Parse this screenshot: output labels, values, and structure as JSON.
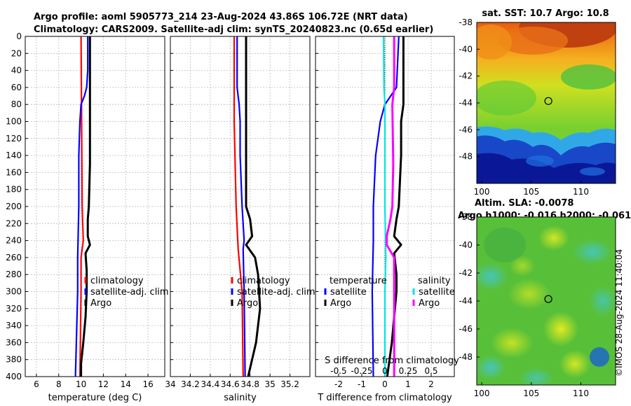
{
  "header": {
    "line1": "Argo profile: aoml 5905773_214 23-Aug-2024 43.86S 106.72E (NRT data)",
    "line2": "Climatology: CARS2009. Satellite-adj clim: synTS_20240823.nc (0.65d earlier)"
  },
  "stamp": "©IMOS 28-Aug-2024 11:40:04",
  "colors": {
    "climatology": "#ff0000",
    "satellite": "#0000ff",
    "argo": "#000000",
    "sal_satellite": "#00e5e5",
    "sal_argo": "#ff00ff"
  },
  "chart_data": [
    {
      "type": "line",
      "id": "temperature",
      "xlabel": "temperature (deg C)",
      "xlim": [
        5,
        17.5
      ],
      "xticks": [
        6,
        8,
        10,
        12,
        14,
        16
      ],
      "ylim": [
        0,
        400
      ],
      "yticks": [
        0,
        20,
        40,
        60,
        80,
        100,
        120,
        140,
        160,
        180,
        200,
        220,
        240,
        260,
        280,
        300,
        320,
        340,
        360,
        380,
        400
      ],
      "grid": true,
      "legend": [
        "climatology",
        "satellite-adj. clim",
        "Argo"
      ],
      "legend_position": "lower-center",
      "series": [
        {
          "name": "climatology",
          "color": "#ff0000",
          "depth": [
            0,
            100,
            200,
            240,
            250,
            260,
            300,
            350,
            400
          ],
          "values": [
            10.0,
            10.05,
            10.1,
            10.2,
            10.1,
            10.0,
            10.0,
            9.95,
            9.9
          ]
        },
        {
          "name": "satellite-adj. clim",
          "color": "#0000ff",
          "depth": [
            0,
            40,
            60,
            70,
            80,
            100,
            140,
            200,
            260,
            300,
            350,
            400
          ],
          "values": [
            10.6,
            10.6,
            10.5,
            10.3,
            10.0,
            9.9,
            9.8,
            9.8,
            9.7,
            9.7,
            9.6,
            9.5
          ]
        },
        {
          "name": "Argo",
          "color": "#000000",
          "depth": [
            0,
            100,
            150,
            200,
            215,
            235,
            245,
            255,
            275,
            300,
            330,
            360,
            385,
            400
          ],
          "values": [
            10.8,
            10.8,
            10.8,
            10.7,
            10.6,
            10.6,
            10.8,
            10.4,
            10.5,
            10.5,
            10.4,
            10.2,
            10.0,
            10.0
          ]
        }
      ]
    },
    {
      "type": "line",
      "id": "salinity",
      "xlabel": "salinity",
      "xlim": [
        34.0,
        35.4
      ],
      "xticks": [
        34,
        34.2,
        34.4,
        34.6,
        34.8,
        35,
        35.2
      ],
      "ylim": [
        0,
        400
      ],
      "grid": true,
      "legend": [
        "climatology",
        "satellite-adj. clim",
        "Argo"
      ],
      "legend_position": "lower-center",
      "series": [
        {
          "name": "climatology",
          "color": "#ff0000",
          "depth": [
            0,
            100,
            200,
            250,
            300,
            400
          ],
          "values": [
            34.64,
            34.64,
            34.66,
            34.68,
            34.72,
            34.73
          ]
        },
        {
          "name": "satellite-adj. clim",
          "color": "#0000ff",
          "depth": [
            0,
            60,
            80,
            100,
            140,
            200,
            240,
            250,
            300,
            400
          ],
          "values": [
            34.67,
            34.67,
            34.69,
            34.7,
            34.7,
            34.72,
            34.74,
            34.73,
            34.74,
            34.75
          ]
        },
        {
          "name": "Argo",
          "color": "#000000",
          "depth": [
            0,
            60,
            150,
            200,
            215,
            235,
            245,
            260,
            280,
            320,
            360,
            400
          ],
          "values": [
            34.76,
            34.76,
            34.76,
            34.76,
            34.8,
            34.82,
            34.76,
            34.85,
            34.88,
            34.9,
            34.86,
            34.78
          ]
        }
      ]
    },
    {
      "type": "line",
      "id": "difference",
      "xlabel": "T difference from climatology",
      "xlabel_top": "S difference from climatology",
      "xlim": [
        -3,
        3
      ],
      "xticks": [
        -2,
        -1,
        0,
        1,
        2
      ],
      "xticks_top_values": [
        -0.5,
        -0.25,
        0,
        0.25,
        0.5
      ],
      "xticks_top_labels": [
        "-0.5",
        "-0.25",
        "0",
        "0.25",
        "0.5"
      ],
      "ylim": [
        0,
        400
      ],
      "grid": true,
      "legend_temperature_title": "temperature",
      "legend_salinity_title": "salinity",
      "legend_temperature": [
        "satellite",
        "Argo"
      ],
      "legend_salinity": [
        "satellite",
        "Argo"
      ],
      "series": [
        {
          "name": "temperature satellite",
          "color": "#0000ff",
          "depth": [
            0,
            60,
            80,
            100,
            140,
            200,
            240,
            300,
            400
          ],
          "values": [
            0.6,
            0.5,
            0.0,
            -0.2,
            -0.4,
            -0.5,
            -0.5,
            -0.55,
            -0.5
          ]
        },
        {
          "name": "temperature Argo",
          "color": "#000000",
          "depth": [
            0,
            60,
            80,
            100,
            140,
            200,
            215,
            235,
            245,
            255,
            280,
            300,
            330,
            360,
            400
          ],
          "values": [
            0.8,
            0.8,
            0.8,
            0.7,
            0.7,
            0.6,
            0.5,
            0.4,
            0.7,
            0.4,
            0.5,
            0.5,
            0.4,
            0.3,
            0.1
          ]
        },
        {
          "name": "salinity satellite",
          "color": "#00e5e5",
          "depth": [
            0,
            60,
            80,
            120,
            200,
            260,
            300,
            400
          ],
          "values": [
            -0.015,
            -0.01,
            0.0,
            0.0,
            0.0,
            0.01,
            0.0,
            0.0
          ]
        },
        {
          "name": "salinity Argo",
          "color": "#ff00ff",
          "depth": [
            0,
            60,
            80,
            150,
            200,
            215,
            235,
            245,
            260,
            300,
            400
          ],
          "values": [
            0.1,
            0.1,
            0.08,
            0.09,
            0.08,
            0.06,
            0.02,
            0.02,
            0.1,
            0.1,
            0.1
          ]
        }
      ]
    },
    {
      "type": "heatmap",
      "id": "sst-map",
      "title": "sat. SST: 10.7 Argo: 10.8",
      "xticks": [
        100,
        105,
        110
      ],
      "yticks": [
        -38,
        -40,
        -42,
        -44,
        -46,
        -48
      ],
      "xlim": [
        99.5,
        113.5
      ],
      "ylim": [
        -50,
        -38
      ],
      "marker": {
        "lon": 106.72,
        "lat": -43.86
      }
    },
    {
      "type": "heatmap",
      "id": "sla-map",
      "title_line1": "Altim. SLA: -0.0078",
      "title_line2": "Argo h1000: -0.016 h2000: -0.061",
      "xticks": [
        100,
        105,
        110
      ],
      "yticks": [
        -38,
        -40,
        -42,
        -44,
        -46,
        -48
      ],
      "xlim": [
        99.5,
        113.5
      ],
      "ylim": [
        -50,
        -38
      ],
      "marker": {
        "lon": 106.72,
        "lat": -43.86
      }
    }
  ]
}
